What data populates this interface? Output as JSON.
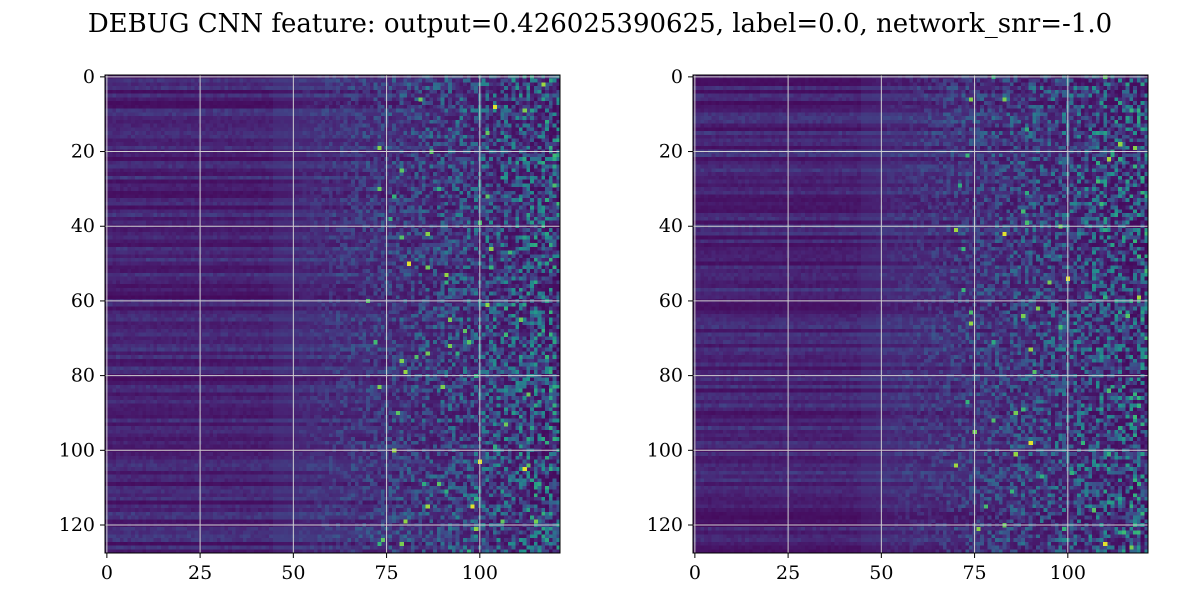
{
  "title": "DEBUG CNN feature: output=0.426025390625, label=0.0, network_snr=-1.0",
  "chart_data": [
    {
      "type": "heatmap",
      "title": "",
      "xlabel": "",
      "ylabel": "",
      "colormap": "viridis",
      "grid": true,
      "columns": 122,
      "rows": 128,
      "xlim": [
        -0.5,
        121.5
      ],
      "ylim": [
        127.5,
        -0.5
      ],
      "xticks": [
        0,
        25,
        50,
        75,
        100
      ],
      "yticks": [
        0,
        20,
        40,
        60,
        80,
        100,
        120
      ],
      "pattern": "smooth low-value banded rows for columns 0-50, rising noisy speckle toward columns 75-121 with sparse bright pixels near columns 98-115"
    },
    {
      "type": "heatmap",
      "title": "",
      "xlabel": "",
      "ylabel": "",
      "colormap": "viridis",
      "grid": true,
      "columns": 122,
      "rows": 128,
      "xlim": [
        -0.5,
        121.5
      ],
      "ylim": [
        127.5,
        -0.5
      ],
      "xticks": [
        0,
        25,
        50,
        75,
        100
      ],
      "yticks": [
        0,
        20,
        40,
        60,
        80,
        100,
        120
      ],
      "pattern": "smooth low-value banded rows for columns 0-55, noisy speckle from column 65 onward with sparse bright pixels near columns 83 and 100"
    }
  ]
}
